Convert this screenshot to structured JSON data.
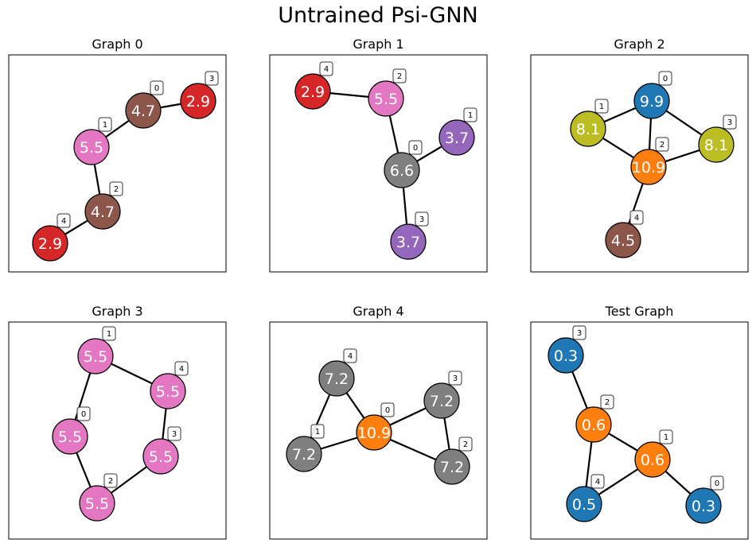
{
  "title": "Untrained Psi-GNN",
  "panels": [
    {
      "title": "Graph 0",
      "nodes": [
        {
          "id": "0",
          "value": "4.7",
          "color": "#8c564b"
        },
        {
          "id": "1",
          "value": "5.5",
          "color": "#e377c2"
        },
        {
          "id": "2",
          "value": "4.7",
          "color": "#8c564b"
        },
        {
          "id": "3",
          "value": "2.9",
          "color": "#d62728"
        },
        {
          "id": "4",
          "value": "2.9",
          "color": "#d62728"
        }
      ],
      "edges": [
        [
          "0",
          "1"
        ],
        [
          "0",
          "3"
        ],
        [
          "1",
          "2"
        ],
        [
          "2",
          "4"
        ]
      ]
    },
    {
      "title": "Graph 1",
      "nodes": [
        {
          "id": "0",
          "value": "6.6",
          "color": "#7f7f7f"
        },
        {
          "id": "1",
          "value": "3.7",
          "color": "#9467bd"
        },
        {
          "id": "2",
          "value": "5.5",
          "color": "#e377c2"
        },
        {
          "id": "3",
          "value": "3.7",
          "color": "#9467bd"
        },
        {
          "id": "4",
          "value": "2.9",
          "color": "#d62728"
        }
      ],
      "edges": [
        [
          "4",
          "2"
        ],
        [
          "2",
          "0"
        ],
        [
          "0",
          "1"
        ],
        [
          "0",
          "3"
        ]
      ]
    },
    {
      "title": "Graph 2",
      "nodes": [
        {
          "id": "0",
          "value": "9.9",
          "color": "#1f77b4"
        },
        {
          "id": "1",
          "value": "8.1",
          "color": "#bcbd22"
        },
        {
          "id": "2",
          "value": "10.9",
          "color": "#ff7f0e"
        },
        {
          "id": "3",
          "value": "8.1",
          "color": "#bcbd22"
        },
        {
          "id": "4",
          "value": "4.5",
          "color": "#8c564b"
        }
      ],
      "edges": [
        [
          "1",
          "0"
        ],
        [
          "0",
          "3"
        ],
        [
          "0",
          "2"
        ],
        [
          "1",
          "2"
        ],
        [
          "2",
          "3"
        ],
        [
          "2",
          "4"
        ]
      ]
    },
    {
      "title": "Graph 3",
      "nodes": [
        {
          "id": "0",
          "value": "5.5",
          "color": "#e377c2"
        },
        {
          "id": "1",
          "value": "5.5",
          "color": "#e377c2"
        },
        {
          "id": "2",
          "value": "5.5",
          "color": "#e377c2"
        },
        {
          "id": "3",
          "value": "5.5",
          "color": "#e377c2"
        },
        {
          "id": "4",
          "value": "5.5",
          "color": "#e377c2"
        }
      ],
      "edges": [
        [
          "1",
          "4"
        ],
        [
          "4",
          "3"
        ],
        [
          "3",
          "2"
        ],
        [
          "2",
          "0"
        ],
        [
          "0",
          "1"
        ]
      ]
    },
    {
      "title": "Graph 4",
      "nodes": [
        {
          "id": "0",
          "value": "10.9",
          "color": "#ff7f0e"
        },
        {
          "id": "1",
          "value": "7.2",
          "color": "#7f7f7f"
        },
        {
          "id": "2",
          "value": "7.2",
          "color": "#7f7f7f"
        },
        {
          "id": "3",
          "value": "7.2",
          "color": "#7f7f7f"
        },
        {
          "id": "4",
          "value": "7.2",
          "color": "#7f7f7f"
        }
      ],
      "edges": [
        [
          "4",
          "1"
        ],
        [
          "4",
          "0"
        ],
        [
          "1",
          "0"
        ],
        [
          "0",
          "3"
        ],
        [
          "0",
          "2"
        ],
        [
          "3",
          "2"
        ]
      ]
    },
    {
      "title": "Test Graph",
      "nodes": [
        {
          "id": "0",
          "value": "0.3",
          "color": "#1f77b4"
        },
        {
          "id": "1",
          "value": "0.6",
          "color": "#ff7f0e"
        },
        {
          "id": "2",
          "value": "0.6",
          "color": "#ff7f0e"
        },
        {
          "id": "3",
          "value": "0.3",
          "color": "#1f77b4"
        },
        {
          "id": "4",
          "value": "0.5",
          "color": "#1f77b4"
        }
      ],
      "edges": [
        [
          "3",
          "2"
        ],
        [
          "2",
          "1"
        ],
        [
          "2",
          "4"
        ],
        [
          "4",
          "1"
        ],
        [
          "1",
          "0"
        ]
      ]
    }
  ]
}
